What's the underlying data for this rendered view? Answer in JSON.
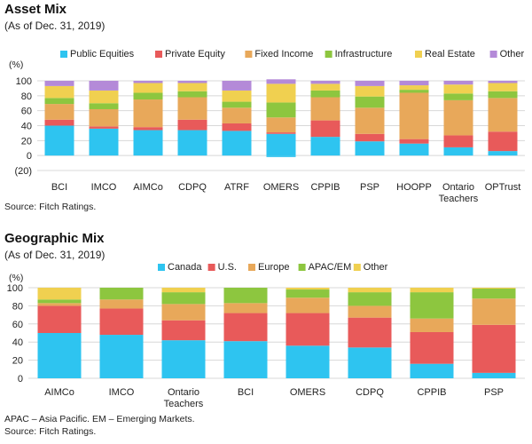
{
  "chart_data": [
    {
      "type": "bar",
      "stacked": true,
      "title": "Asset Mix",
      "subtitle": "(As of Dec. 31, 2019)",
      "ylabel": "(%)",
      "ylim": [
        -20,
        100
      ],
      "yticks": [
        -20,
        0,
        20,
        40,
        60,
        80,
        100
      ],
      "ytick_labels": [
        "(20)",
        "0",
        "20",
        "40",
        "60",
        "80",
        "100"
      ],
      "grid": true,
      "legend_position": "top",
      "categories": [
        "BCI",
        "IMCO",
        "AIMCo",
        "CDPQ",
        "ATRF",
        "OMERS",
        "CPPIB",
        "PSP",
        "HOOPP",
        "Ontario Teachers",
        "OPTrust"
      ],
      "series": [
        {
          "name": "Public Equities",
          "color": "#2ec4f0",
          "values": [
            40,
            36,
            34,
            34,
            33,
            29,
            25,
            19,
            16,
            11,
            6
          ]
        },
        {
          "name": "Private Equity",
          "color": "#e85a5a",
          "values": [
            8,
            3,
            4,
            14,
            10,
            2,
            22,
            10,
            6,
            16,
            26
          ]
        },
        {
          "name": "Fixed Income",
          "color": "#e8a85a",
          "values": [
            21,
            23,
            37,
            30,
            21,
            20,
            31,
            35,
            62,
            47,
            45
          ]
        },
        {
          "name": "Infrastructure",
          "color": "#8dc63f",
          "values": [
            8,
            8,
            9,
            8,
            8,
            20,
            9,
            15,
            4,
            9,
            9
          ]
        },
        {
          "name": "Real Estate",
          "color": "#f0d050",
          "values": [
            16,
            17,
            13,
            11,
            15,
            25,
            9,
            14,
            6,
            12,
            11
          ]
        },
        {
          "name": "Other",
          "color": "#b48ad8",
          "values": [
            7,
            13,
            3,
            3,
            13,
            6,
            4,
            7,
            6,
            5,
            3
          ]
        }
      ],
      "negative_values": {
        "OMERS": -2,
        "OPTrust": 0
      },
      "source": "Source: Fitch Ratings."
    },
    {
      "type": "bar",
      "stacked": true,
      "title": "Geographic Mix",
      "subtitle": "(As of Dec. 31, 2019)",
      "ylabel": "(%)",
      "ylim": [
        0,
        100
      ],
      "yticks": [
        0,
        20,
        40,
        60,
        80,
        100
      ],
      "ytick_labels": [
        "0",
        "20",
        "40",
        "60",
        "80",
        "100"
      ],
      "grid": true,
      "legend_position": "top",
      "categories": [
        "AIMCo",
        "IMCO",
        "Ontario Teachers",
        "BCI",
        "OMERS",
        "CDPQ",
        "CPPIB",
        "PSP"
      ],
      "series": [
        {
          "name": "Canada",
          "color": "#2ec4f0",
          "values": [
            50,
            48,
            42,
            41,
            36,
            34,
            16,
            6
          ]
        },
        {
          "name": "U.S.",
          "color": "#e85a5a",
          "values": [
            30,
            29,
            22,
            31,
            36,
            33,
            35,
            53
          ]
        },
        {
          "name": "Europe",
          "color": "#e8a85a",
          "values": [
            3,
            10,
            18,
            11,
            17,
            13,
            15,
            29
          ]
        },
        {
          "name": "APAC/EM",
          "color": "#8dc63f",
          "values": [
            4,
            13,
            13,
            17,
            9,
            15,
            29,
            11
          ]
        },
        {
          "name": "Other",
          "color": "#f0d050",
          "values": [
            13,
            0,
            5,
            0,
            2,
            5,
            5,
            1
          ]
        }
      ],
      "note": "APAC – Asia Pacific. EM – Emerging Markets.",
      "source": "Source: Fitch Ratings."
    }
  ]
}
